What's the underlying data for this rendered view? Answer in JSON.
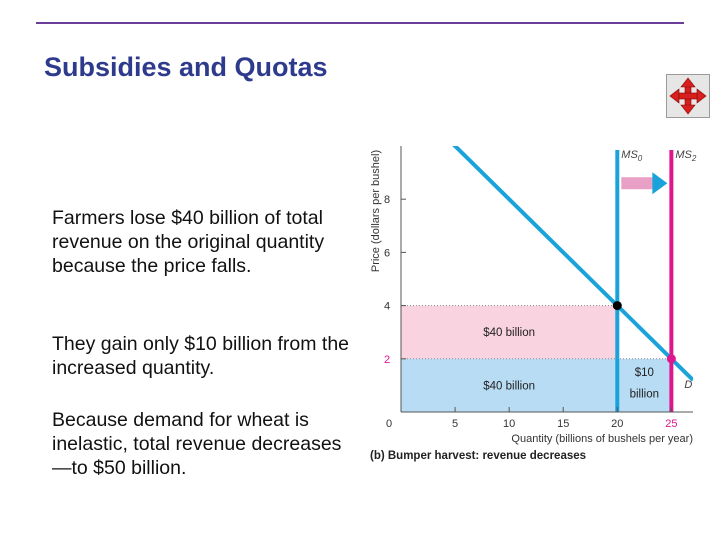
{
  "slide": {
    "title": "Subsidies and Quotas",
    "paragraphs": [
      "Farmers lose $40 billion of total revenue on the original quantity because the price falls.",
      "They gain only $10 billion from the increased quantity.",
      "Because demand for wheat is inelastic, total revenue decreases—to $50 billion."
    ],
    "nav_icon": "four-way-arrows-icon"
  },
  "chart_data": {
    "type": "line",
    "xlabel": "Quantity (billions of bushels per year)",
    "ylabel": "Price (dollars per bushel)",
    "caption_prefix": "(b)",
    "caption": "Bumper harvest: revenue decreases",
    "xlim": [
      0,
      27
    ],
    "ylim": [
      0,
      10
    ],
    "x_ticks": [
      0,
      5,
      10,
      15,
      20,
      25
    ],
    "x_tick_labels": [
      "0",
      "5",
      "10",
      "15",
      "20",
      "25"
    ],
    "y_ticks": [
      2,
      4,
      6,
      8
    ],
    "y_tick_labels": [
      "2",
      "4",
      "6",
      "8"
    ],
    "demand": {
      "label": "D",
      "points": [
        [
          0,
          12
        ],
        [
          27,
          1.2
        ]
      ]
    },
    "supplies": [
      {
        "label_base": "MS",
        "label_sub": "0",
        "x": 20,
        "color": "#1aa3db"
      },
      {
        "label_base": "MS",
        "label_sub": "2",
        "x": 25,
        "color": "#e0168f"
      }
    ],
    "equilibria": [
      {
        "x": 20,
        "y": 4,
        "color": "#000000"
      },
      {
        "x": 25,
        "y": 2,
        "color": "#e0168f"
      }
    ],
    "regions": [
      {
        "x0": 0,
        "x1": 20,
        "y0": 2,
        "y1": 4,
        "label": "$40 billion",
        "color": "#f9d3df"
      },
      {
        "x0": 0,
        "x1": 20,
        "y0": 0,
        "y1": 2,
        "label": "$40 billion",
        "color": "#b8dcf3"
      },
      {
        "x0": 20,
        "x1": 25,
        "y0": 0,
        "y1": 2,
        "label_lines": [
          "$10",
          "billion"
        ],
        "color": "#b8dcf3"
      }
    ],
    "shift_arrow": {
      "from_x": 20,
      "to_x": 25,
      "y": 8.6
    },
    "colors": {
      "demand": "#1aa3db",
      "axis": "#555555",
      "text": "#333333"
    }
  }
}
